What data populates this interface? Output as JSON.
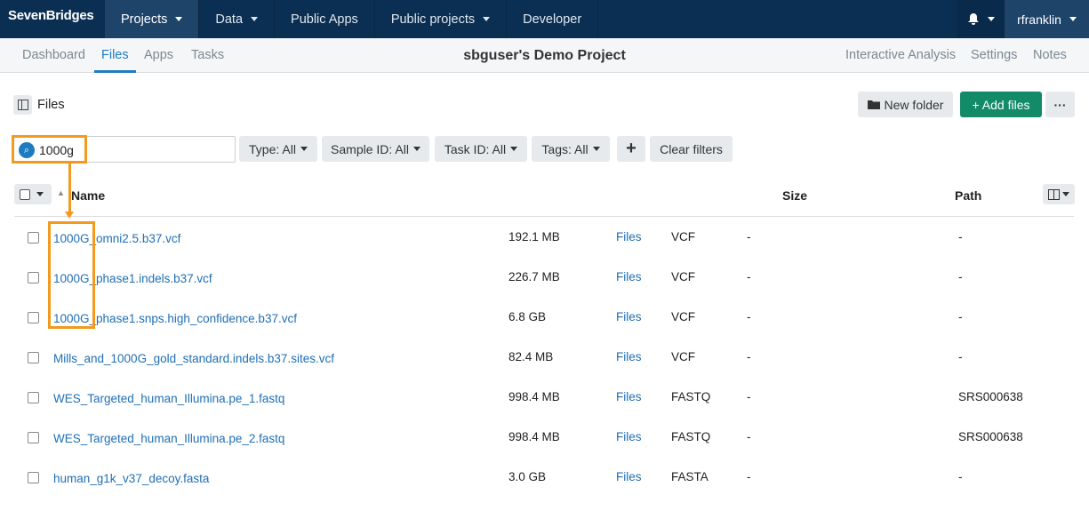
{
  "topbar": {
    "logo": "SevenBridges",
    "nav": [
      {
        "label": "Projects",
        "caret": true
      },
      {
        "label": "Data",
        "caret": true
      },
      {
        "label": "Public Apps",
        "caret": false
      },
      {
        "label": "Public projects",
        "caret": true
      },
      {
        "label": "Developer",
        "caret": false
      }
    ],
    "user": "rfranklin",
    "bell_icon": "bell-icon"
  },
  "subnav": {
    "tabs": [
      "Dashboard",
      "Files",
      "Apps",
      "Tasks"
    ],
    "active": "Files",
    "title": "sbguser's Demo Project",
    "right": [
      "Interactive Analysis",
      "Settings",
      "Notes"
    ]
  },
  "toolbar": {
    "panel_label": "Files",
    "new_folder": "New folder",
    "add_files": "+ Add files",
    "more": "···"
  },
  "filters": {
    "search_value": "1000g",
    "type": "Type: All",
    "sample": "Sample ID: All",
    "task": "Task ID: All",
    "tags": "Tags: All",
    "add": "+",
    "clear": "Clear filters"
  },
  "table": {
    "headers": {
      "name": "Name",
      "size": "Size",
      "path": "Path"
    },
    "rows": [
      {
        "name": "1000G_omni2.5.b37.vcf",
        "size": "192.1 MB",
        "location": "Files",
        "type": "VCF",
        "sample": "-",
        "path": "-"
      },
      {
        "name": "1000G_phase1.indels.b37.vcf",
        "size": "226.7 MB",
        "location": "Files",
        "type": "VCF",
        "sample": "-",
        "path": "-"
      },
      {
        "name": "1000G_phase1.snps.high_confidence.b37.vcf",
        "size": "6.8 GB",
        "location": "Files",
        "type": "VCF",
        "sample": "-",
        "path": "-"
      },
      {
        "name": "Mills_and_1000G_gold_standard.indels.b37.sites.vcf",
        "size": "82.4 MB",
        "location": "Files",
        "type": "VCF",
        "sample": "-",
        "path": "-"
      },
      {
        "name": "WES_Targeted_human_Illumina.pe_1.fastq",
        "size": "998.4 MB",
        "location": "Files",
        "type": "FASTQ",
        "sample": "-",
        "path": "SRS000638"
      },
      {
        "name": "WES_Targeted_human_Illumina.pe_2.fastq",
        "size": "998.4 MB",
        "location": "Files",
        "type": "FASTQ",
        "sample": "-",
        "path": "SRS000638"
      },
      {
        "name": "human_g1k_v37_decoy.fasta",
        "size": "3.0 GB",
        "location": "Files",
        "type": "FASTA",
        "sample": "-",
        "path": "-"
      }
    ]
  },
  "colors": {
    "topbar": "#0b2f52",
    "accent": "#1f7bc1",
    "add": "#138a68",
    "highlight": "#f39a1e"
  }
}
